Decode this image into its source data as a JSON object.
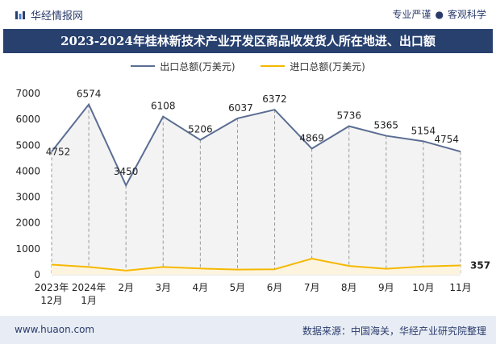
{
  "header": {
    "brand": "华经情报网",
    "tagline_left": "专业严谨",
    "tagline_right": "客观科学"
  },
  "chart_data": {
    "type": "area",
    "title": "2023-2024年桂林新技术产业开发区商品收发货人所在地进、出口额",
    "categories": [
      "2023年\n12月",
      "2024年\n1月",
      "2月",
      "3月",
      "4月",
      "5月",
      "6月",
      "7月",
      "8月",
      "9月",
      "10月",
      "11月"
    ],
    "ylim": [
      0,
      7000
    ],
    "yticks": [
      0,
      1000,
      2000,
      3000,
      4000,
      5000,
      6000,
      7000
    ],
    "series": [
      {
        "name": "出口总额(万美元)",
        "color": "#5b6d93",
        "values": [
          4752,
          6574,
          3450,
          6108,
          5206,
          6037,
          6372,
          4869,
          5736,
          5365,
          5154,
          4754
        ],
        "labels": [
          "4752",
          "6574",
          "3450",
          "6108",
          "5206",
          "6037",
          "6372",
          "4869",
          "5736",
          "5365",
          "5154",
          "4754"
        ]
      },
      {
        "name": "进口总额(万美元)",
        "color": "#f5b800",
        "values": [
          390,
          300,
          160,
          300,
          240,
          200,
          210,
          620,
          340,
          230,
          320,
          357
        ],
        "last_label": "357"
      }
    ]
  },
  "footer": {
    "site": "www.huaon.com",
    "source": "数据来源：中国海关，华经产业研究院整理"
  }
}
